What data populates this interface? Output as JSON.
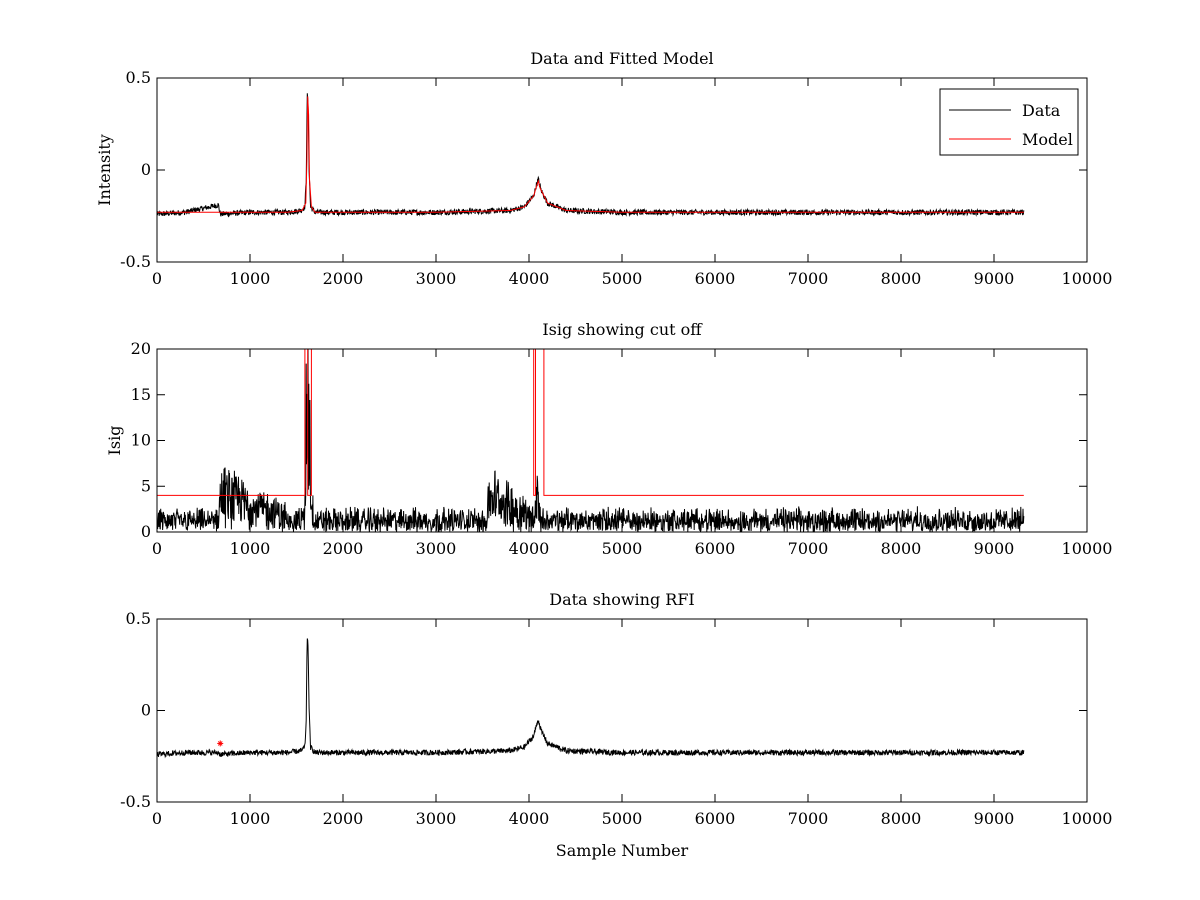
{
  "chart_data": [
    {
      "type": "line",
      "title": "Data and Fitted Model",
      "xlabel": "",
      "ylabel": "Intensity",
      "xlim": [
        0,
        10000
      ],
      "ylim": [
        -0.5,
        0.5
      ],
      "xticks": [
        0,
        1000,
        2000,
        3000,
        4000,
        5000,
        6000,
        7000,
        8000,
        9000,
        10000
      ],
      "xtick_labels": [
        "0",
        "1000",
        "2000",
        "3000",
        "4000",
        "5000",
        "6000",
        "7000",
        "8000",
        "9000",
        "10000"
      ],
      "yticks": [
        -0.5,
        0,
        0.5
      ],
      "ytick_labels": [
        "-0.5",
        "0",
        "0.5"
      ],
      "legend": {
        "position": "top-right",
        "entries": [
          "Data",
          "Model"
        ]
      },
      "series": [
        {
          "name": "Data",
          "color": "#000000",
          "x": [
            0,
            300,
            660,
            680,
            1000,
            1400,
            1550,
            1590,
            1605,
            1615,
            1625,
            1635,
            1650,
            1700,
            2000,
            3000,
            3800,
            3950,
            4050,
            4080,
            4100,
            4130,
            4200,
            4400,
            5000,
            6000,
            7000,
            8000,
            9000,
            9320
          ],
          "y": [
            -0.24,
            -0.23,
            -0.19,
            -0.24,
            -0.23,
            -0.23,
            -0.22,
            -0.2,
            -0.05,
            0.41,
            0.35,
            0.02,
            -0.2,
            -0.23,
            -0.23,
            -0.23,
            -0.22,
            -0.2,
            -0.14,
            -0.08,
            -0.05,
            -0.11,
            -0.18,
            -0.22,
            -0.23,
            -0.23,
            -0.23,
            -0.23,
            -0.23,
            -0.23
          ],
          "noise": 0.015
        },
        {
          "name": "Model",
          "color": "#ff0000",
          "x": [
            0,
            1000,
            1400,
            1560,
            1600,
            1612,
            1620,
            1630,
            1640,
            1660,
            1700,
            2000,
            3000,
            3800,
            3950,
            4050,
            4080,
            4100,
            4120,
            4200,
            4400,
            5000,
            6000,
            7000,
            8000,
            9000,
            9320
          ],
          "y": [
            -0.23,
            -0.23,
            -0.23,
            -0.22,
            -0.18,
            0.05,
            0.4,
            0.3,
            -0.05,
            -0.2,
            -0.23,
            -0.23,
            -0.23,
            -0.22,
            -0.2,
            -0.14,
            -0.09,
            -0.06,
            -0.1,
            -0.18,
            -0.22,
            -0.23,
            -0.23,
            -0.23,
            -0.23,
            -0.23,
            -0.23
          ]
        }
      ]
    },
    {
      "type": "line",
      "title": "Isig showing cut off",
      "xlabel": "",
      "ylabel": "Isig",
      "xlim": [
        0,
        10000
      ],
      "ylim": [
        0,
        20
      ],
      "xticks": [
        0,
        1000,
        2000,
        3000,
        4000,
        5000,
        6000,
        7000,
        8000,
        9000,
        10000
      ],
      "xtick_labels": [
        "0",
        "1000",
        "2000",
        "3000",
        "4000",
        "5000",
        "6000",
        "7000",
        "8000",
        "9000",
        "10000"
      ],
      "yticks": [
        0,
        5,
        10,
        15,
        20
      ],
      "ytick_labels": [
        "0",
        "5",
        "10",
        "15",
        "20"
      ],
      "series": [
        {
          "name": "Isig",
          "color": "#000000",
          "x": [
            0,
            660,
            680,
            1500,
            1590,
            1605,
            1615,
            1625,
            1640,
            1660,
            1700,
            3550,
            3570,
            4050,
            4090,
            4110,
            4150,
            9320
          ],
          "y": [
            1.2,
            1.2,
            4.0,
            1.2,
            1.5,
            12,
            18.5,
            16,
            11,
            3,
            1.2,
            1.2,
            4.0,
            1.5,
            5,
            2,
            1.2,
            1.2
          ],
          "noise": 1.4
        },
        {
          "name": "Cut off",
          "color": "#ff0000",
          "step": true,
          "x": [
            0,
            1590,
            1590,
            1620,
            1620,
            1660,
            1660,
            4050,
            4050,
            4070,
            4070,
            4160,
            4160,
            9320
          ],
          "y": [
            4,
            4,
            20,
            20,
            4,
            4,
            20,
            20,
            4,
            4,
            20,
            20,
            4,
            4
          ]
        }
      ]
    },
    {
      "type": "line",
      "title": "Data showing RFI",
      "xlabel": "Sample Number",
      "ylabel": "",
      "xlim": [
        0,
        10000
      ],
      "ylim": [
        -0.5,
        0.5
      ],
      "xticks": [
        0,
        1000,
        2000,
        3000,
        4000,
        5000,
        6000,
        7000,
        8000,
        9000,
        10000
      ],
      "xtick_labels": [
        "0",
        "1000",
        "2000",
        "3000",
        "4000",
        "5000",
        "6000",
        "7000",
        "8000",
        "9000",
        "10000"
      ],
      "yticks": [
        -0.5,
        0,
        0.5
      ],
      "ytick_labels": [
        "-0.5",
        "0",
        "0.5"
      ],
      "series": [
        {
          "name": "Data",
          "color": "#000000",
          "x": [
            0,
            300,
            660,
            680,
            1000,
            1400,
            1550,
            1590,
            1605,
            1615,
            1625,
            1635,
            1650,
            1700,
            2000,
            3000,
            3800,
            3950,
            4050,
            4080,
            4100,
            4130,
            4200,
            4400,
            5000,
            6000,
            7000,
            8000,
            9000,
            9320
          ],
          "y": [
            -0.24,
            -0.23,
            -0.23,
            -0.24,
            -0.23,
            -0.23,
            -0.22,
            -0.2,
            -0.05,
            0.41,
            0.35,
            0.02,
            -0.2,
            -0.23,
            -0.23,
            -0.23,
            -0.22,
            -0.2,
            -0.14,
            -0.08,
            -0.05,
            -0.11,
            -0.18,
            -0.22,
            -0.23,
            -0.23,
            -0.23,
            -0.23,
            -0.23,
            -0.23
          ],
          "noise": 0.015
        },
        {
          "name": "RFI",
          "color": "#ff0000",
          "marker": "*",
          "x": [
            680
          ],
          "y": [
            -0.18
          ]
        }
      ]
    }
  ]
}
